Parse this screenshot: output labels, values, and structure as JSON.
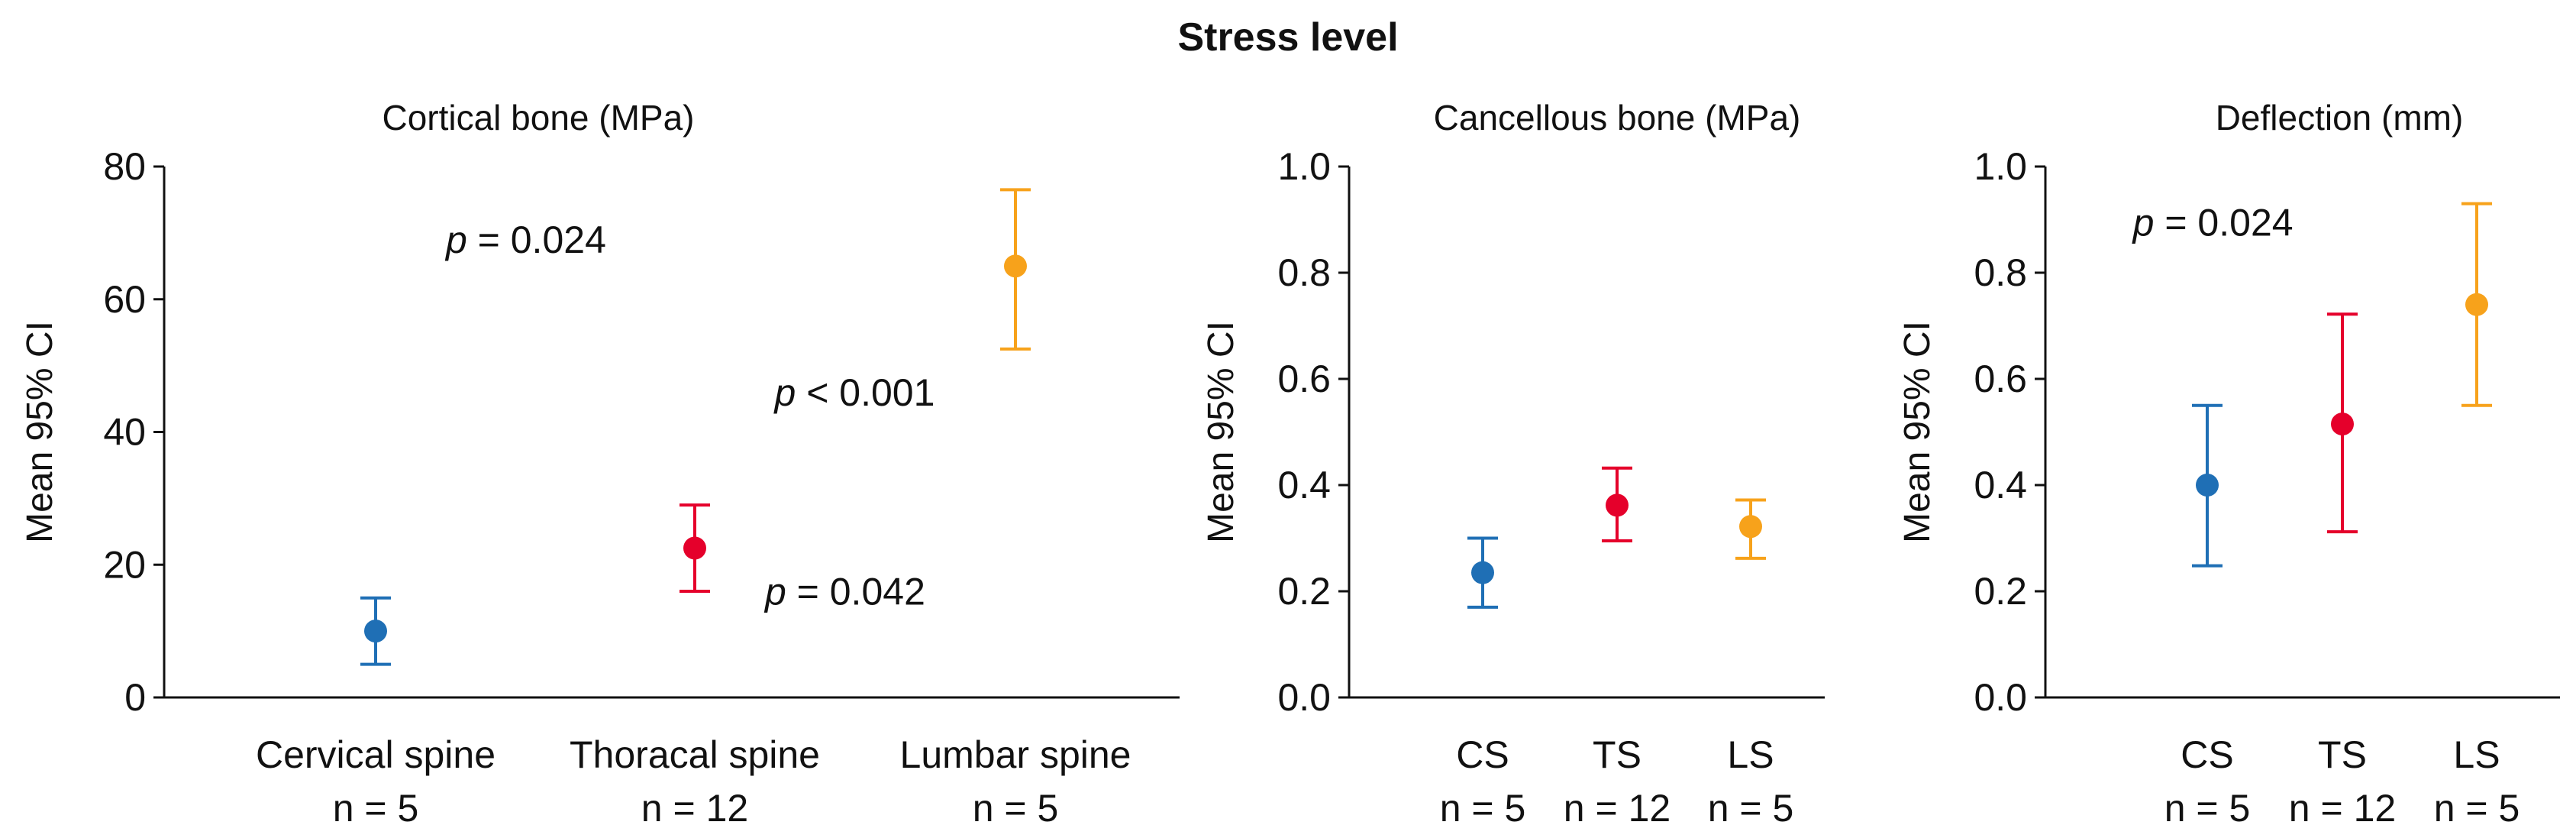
{
  "figure_title": "Stress level",
  "colors": {
    "series": [
      "#1f6fb5",
      "#e5002b",
      "#f7a21b"
    ],
    "axis": "#111111"
  },
  "chart_data": [
    {
      "type": "scatter",
      "title": "Cortical bone (MPa)",
      "ylabel": "Mean 95% CI",
      "ylim": [
        0,
        80
      ],
      "yticks": [
        0,
        20,
        40,
        60,
        80
      ],
      "categories": [
        "Cervical spine",
        "Thoracal spine",
        "Lumbar spine"
      ],
      "counts": [
        "n = 5",
        "n = 12",
        "n = 5"
      ],
      "mean": [
        10,
        22.5,
        65
      ],
      "ci_low": [
        5,
        16,
        52.5
      ],
      "ci_high": [
        15,
        29,
        76.5
      ],
      "annotations": [
        {
          "prefix": "p",
          "text": " = 0.024",
          "x": 0.22,
          "y": 67
        },
        {
          "prefix": "p",
          "text": " = 0.042",
          "x": 1.22,
          "y": 14
        },
        {
          "prefix": "p",
          "text": " < 0.001",
          "x": 1.25,
          "y": 44
        }
      ]
    },
    {
      "type": "scatter",
      "title": "Cancellous bone (MPa)",
      "ylabel": "Mean 95% CI",
      "ylim": [
        0,
        1
      ],
      "yticks": [
        "0.0",
        "0.2",
        "0.4",
        "0.6",
        "0.8",
        "1.0"
      ],
      "categories": [
        "CS",
        "TS",
        "LS"
      ],
      "counts": [
        "n = 5",
        "n = 12",
        "n = 5"
      ],
      "mean": [
        0.235,
        0.362,
        0.322
      ],
      "ci_low": [
        0.17,
        0.295,
        0.262
      ],
      "ci_high": [
        0.3,
        0.432,
        0.372
      ],
      "annotations": []
    },
    {
      "type": "scatter",
      "title": "Deflection (mm)",
      "ylabel": "Mean 95% CI",
      "ylim": [
        0,
        1
      ],
      "yticks": [
        "0.0",
        "0.2",
        "0.4",
        "0.6",
        "0.8",
        "1.0"
      ],
      "categories": [
        "CS",
        "TS",
        "LS"
      ],
      "counts": [
        "n = 5",
        "n = 12",
        "n = 5"
      ],
      "mean": [
        0.4,
        0.515,
        0.74
      ],
      "ci_low": [
        0.248,
        0.312,
        0.55
      ],
      "ci_high": [
        0.55,
        0.722,
        0.93
      ],
      "annotations": [
        {
          "prefix": "p",
          "text": " = 0.024",
          "x": -0.55,
          "y": 0.87
        }
      ]
    }
  ]
}
